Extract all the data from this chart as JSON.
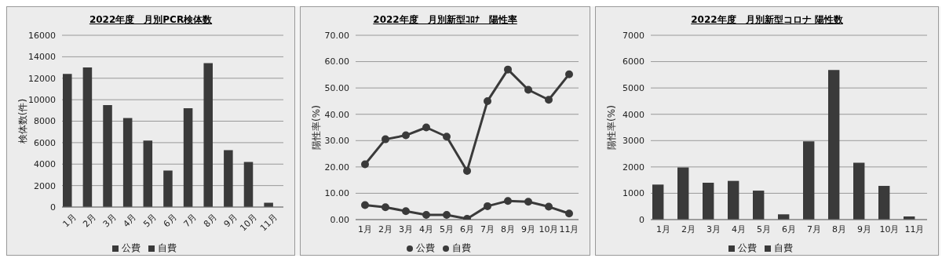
{
  "chart_data": [
    {
      "type": "bar",
      "title": "2022年度　月別PCR検体数",
      "ylabel": "検体数(件)",
      "categories": [
        "1月",
        "2月",
        "3月",
        "4月",
        "5月",
        "6月",
        "7月",
        "8月",
        "9月",
        "10月",
        "11月"
      ],
      "series": [
        {
          "name": "公費",
          "color": "#3a3a3a",
          "values": [
            12400,
            13000,
            9500,
            8300,
            6200,
            3400,
            9200,
            13400,
            5300,
            4200,
            400
          ]
        },
        {
          "name": "自費",
          "color": "#3a3a3a",
          "values": [
            null,
            null,
            null,
            null,
            null,
            null,
            null,
            null,
            null,
            null,
            null
          ]
        }
      ],
      "ylim": [
        0,
        16000
      ],
      "yticks": [
        0,
        2000,
        4000,
        6000,
        8000,
        10000,
        12000,
        14000,
        16000
      ],
      "grid": "y",
      "legend": "bottom"
    },
    {
      "type": "line",
      "title": "2022年度　月別新型ｺﾛﾅ　陽性率",
      "ylabel": "陽性率(%)",
      "categories": [
        "1月",
        "2月",
        "3月",
        "4月",
        "5月",
        "6月",
        "7月",
        "8月",
        "9月",
        "10月",
        "11月"
      ],
      "series": [
        {
          "name": "公費",
          "color": "#3a3a3a",
          "values": [
            21,
            30.5,
            32,
            35,
            31.5,
            18.5,
            45,
            57,
            49.3,
            45.5,
            55.2
          ]
        },
        {
          "name": "自費",
          "color": "#3a3a3a",
          "values": [
            5.5,
            4.7,
            3.2,
            1.8,
            1.8,
            0.3,
            5.1,
            7.1,
            6.8,
            4.9,
            2.3
          ]
        }
      ],
      "ylim": [
        0,
        70
      ],
      "yticks": [
        {
          "value": 0,
          "label": "0.00"
        },
        {
          "value": 10,
          "label": "10.00"
        },
        {
          "value": 20,
          "label": "20.00"
        },
        {
          "value": 30,
          "label": "30.00"
        },
        {
          "value": 40,
          "label": "40.00"
        },
        {
          "value": 50,
          "label": "50.00"
        },
        {
          "value": 60,
          "label": "60.00"
        },
        {
          "value": 70,
          "label": "70.00"
        }
      ],
      "grid": "y",
      "legend": "bottom",
      "marker": "circle",
      "line_style": "solid"
    },
    {
      "type": "bar",
      "title": "2022年度　月別新型コロナ 陽性数",
      "ylabel": "陽性率(%)",
      "categories": [
        "1月",
        "2月",
        "3月",
        "4月",
        "5月",
        "6月",
        "7月",
        "8月",
        "9月",
        "10月",
        "11月"
      ],
      "series": [
        {
          "name": "公費",
          "color": "#3a3a3a",
          "values": [
            1330,
            1980,
            1400,
            1470,
            1100,
            200,
            2970,
            5680,
            2160,
            1280,
            120
          ]
        },
        {
          "name": "自費",
          "color": "#3a3a3a",
          "values": [
            null,
            null,
            null,
            null,
            null,
            null,
            null,
            null,
            null,
            null,
            null
          ]
        }
      ],
      "ylim": [
        0,
        7000
      ],
      "yticks": [
        0,
        1000,
        2000,
        3000,
        4000,
        5000,
        6000,
        7000
      ],
      "grid": "y",
      "legend": "bottom"
    }
  ]
}
